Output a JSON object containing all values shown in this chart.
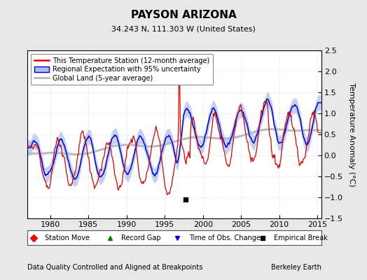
{
  "title": "PAYSON ARIZONA",
  "subtitle": "34.243 N, 111.303 W (United States)",
  "legend_entries": [
    "This Temperature Station (12-month average)",
    "Regional Expectation with 95% uncertainty",
    "Global Land (5-year average)"
  ],
  "xlabel_left": "Data Quality Controlled and Aligned at Breakpoints",
  "xlabel_right": "Berkeley Earth",
  "year_start": 1977.0,
  "year_end": 2015.5,
  "ylim": [
    -1.5,
    2.5
  ],
  "yticks": [
    -1.5,
    -1.0,
    -0.5,
    0.0,
    0.5,
    1.0,
    1.5,
    2.0,
    2.5
  ],
  "xticks": [
    1980,
    1985,
    1990,
    1995,
    2000,
    2005,
    2010,
    2015
  ],
  "empirical_break_year": 1997.7,
  "empirical_break_y": -1.05,
  "background_color": "#e8e8e8",
  "plot_bg_color": "#ffffff",
  "station_color": "#dd0000",
  "regional_color": "#0000cc",
  "regional_fill_color": "#aabbee",
  "global_color": "#bbbbbb",
  "ylabel": "Temperature Anomaly (°C)"
}
